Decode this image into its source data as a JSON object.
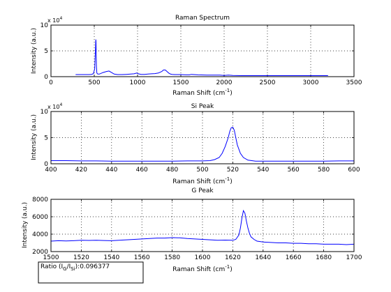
{
  "chart_data": [
    {
      "type": "line",
      "title": "Raman Spectrum",
      "xlabel": "Raman Shift (cm",
      "xlabel_sup": "-1",
      "xlabel_tail": ")",
      "ylabel": "Intensity (a.u.)",
      "y_exponent_base": "x 10",
      "y_exponent_power": "4",
      "xlim": [
        0,
        3500
      ],
      "ylim": [
        0,
        10
      ],
      "xticks": [
        "0",
        "500",
        "1000",
        "1500",
        "2000",
        "2500",
        "3000",
        "3500"
      ],
      "yticks": [
        "0",
        "5",
        "10"
      ],
      "grid": true,
      "series": [
        {
          "color": "#0000ff",
          "x": [
            285,
            300,
            350,
            400,
            440,
            470,
            490,
            505,
            510,
            515,
            518,
            520,
            522,
            525,
            530,
            540,
            560,
            600,
            640,
            670,
            700,
            730,
            770,
            820,
            870,
            920,
            960,
            990,
            1010,
            1040,
            1080,
            1120,
            1160,
            1200,
            1240,
            1280,
            1300,
            1320,
            1340,
            1360,
            1380,
            1400,
            1430,
            1470,
            1500,
            1560,
            1600,
            1620,
            1650,
            1700,
            1800,
            1900,
            1950,
            2000,
            2050,
            2100,
            2200,
            2400,
            2600,
            2800,
            3000,
            3200
          ],
          "y": [
            0.4,
            0.4,
            0.4,
            0.4,
            0.4,
            0.45,
            0.6,
            1.5,
            3.5,
            5.8,
            7.2,
            6.8,
            5.0,
            2.0,
            0.7,
            0.5,
            0.5,
            0.8,
            1.0,
            1.1,
            0.8,
            0.5,
            0.4,
            0.4,
            0.45,
            0.5,
            0.55,
            0.7,
            0.55,
            0.45,
            0.45,
            0.5,
            0.55,
            0.6,
            0.7,
            1.0,
            1.3,
            1.3,
            1.0,
            0.7,
            0.5,
            0.45,
            0.4,
            0.4,
            0.4,
            0.35,
            0.35,
            0.45,
            0.4,
            0.35,
            0.3,
            0.3,
            0.3,
            0.25,
            0.3,
            0.25,
            0.2,
            0.2,
            0.2,
            0.2,
            0.2,
            0.2
          ]
        }
      ]
    },
    {
      "type": "line",
      "title": "Si Peak",
      "xlabel": "Raman Shift (cm",
      "xlabel_sup": "-1",
      "xlabel_tail": ")",
      "ylabel": "Intensity (a.u.)",
      "y_exponent_base": "x 10",
      "y_exponent_power": "4",
      "xlim": [
        400,
        600
      ],
      "ylim": [
        0,
        10
      ],
      "xticks": [
        "400",
        "420",
        "440",
        "460",
        "480",
        "500",
        "520",
        "540",
        "560",
        "580",
        "600"
      ],
      "yticks": [
        "0",
        "5",
        "10"
      ],
      "grid": true,
      "series": [
        {
          "color": "#0000ff",
          "x": [
            400,
            410,
            420,
            430,
            440,
            450,
            460,
            470,
            480,
            490,
            500,
            505,
            508,
            511,
            513,
            515,
            517,
            518,
            519,
            520,
            521,
            522,
            523,
            525,
            527,
            530,
            535,
            540,
            550,
            560,
            570,
            580,
            590,
            600
          ],
          "y": [
            0.6,
            0.6,
            0.55,
            0.55,
            0.5,
            0.5,
            0.5,
            0.5,
            0.5,
            0.55,
            0.55,
            0.6,
            0.8,
            1.2,
            2.0,
            3.3,
            5.0,
            6.2,
            6.9,
            7.0,
            6.4,
            5.0,
            3.6,
            2.0,
            1.2,
            0.7,
            0.5,
            0.5,
            0.5,
            0.5,
            0.5,
            0.5,
            0.55,
            0.55
          ]
        }
      ]
    },
    {
      "type": "line",
      "title": "G Peak",
      "xlabel": "Raman Shift (cm",
      "xlabel_sup": "-1",
      "xlabel_tail": ")",
      "ylabel": "Intensity (a.u.)",
      "xlim": [
        1500,
        1700
      ],
      "ylim": [
        2000,
        8000
      ],
      "xticks": [
        "1500",
        "1520",
        "1540",
        "1560",
        "1580",
        "1600",
        "1620",
        "1640",
        "1660",
        "1680",
        "1700"
      ],
      "yticks": [
        "2000",
        "4000",
        "6000",
        "8000"
      ],
      "grid": true,
      "series": [
        {
          "color": "#0000ff",
          "x": [
            1500,
            1505,
            1510,
            1515,
            1520,
            1525,
            1530,
            1535,
            1540,
            1545,
            1550,
            1555,
            1560,
            1565,
            1570,
            1575,
            1580,
            1585,
            1590,
            1595,
            1600,
            1605,
            1610,
            1615,
            1620,
            1622,
            1624,
            1625,
            1626,
            1627,
            1628,
            1629,
            1630,
            1631,
            1632,
            1634,
            1636,
            1638,
            1640,
            1645,
            1650,
            1655,
            1660,
            1665,
            1670,
            1675,
            1680,
            1685,
            1690,
            1695,
            1700
          ],
          "y": [
            3200,
            3250,
            3220,
            3250,
            3300,
            3280,
            3300,
            3270,
            3250,
            3300,
            3350,
            3400,
            3450,
            3500,
            3550,
            3550,
            3600,
            3580,
            3500,
            3450,
            3400,
            3350,
            3300,
            3320,
            3300,
            3400,
            3900,
            4700,
            5800,
            6700,
            6400,
            5500,
            4700,
            4100,
            3700,
            3400,
            3200,
            3150,
            3100,
            3050,
            3000,
            3000,
            2950,
            2950,
            2900,
            2900,
            2850,
            2850,
            2850,
            2800,
            2850
          ]
        }
      ]
    }
  ],
  "ratio_box": {
    "prefix": "Ratio (I",
    "sub1": "G",
    "mid": "/I",
    "sub2": "Si",
    "suffix": "):0.096377"
  }
}
